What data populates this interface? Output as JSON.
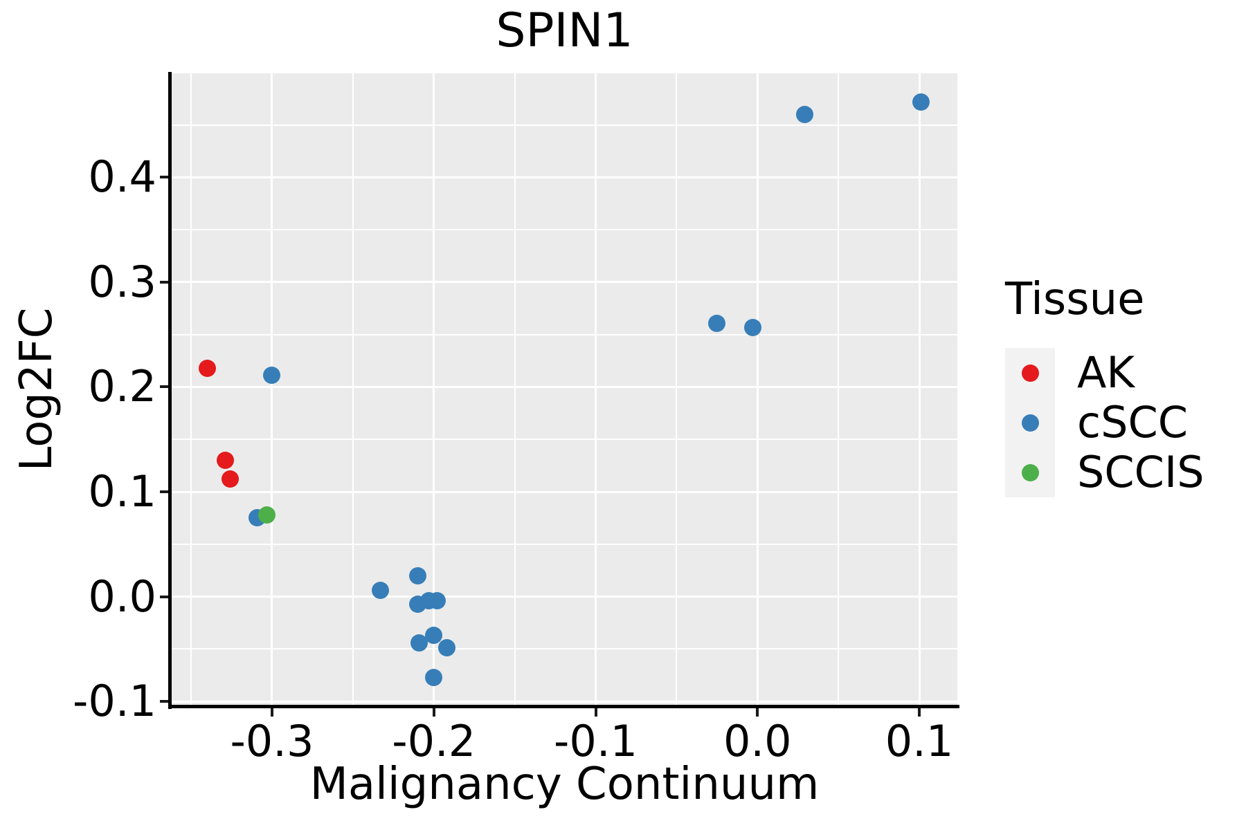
{
  "chart_data": {
    "type": "scatter",
    "title": "SPIN1",
    "xlabel": "Malignancy Continuum",
    "ylabel": "Log2FC",
    "xlim": [
      -0.362,
      0.1235
    ],
    "ylim": [
      -0.1046,
      0.4993
    ],
    "x_ticks": {
      "values": [
        -0.3,
        -0.2,
        -0.1,
        0.0,
        0.1
      ],
      "labels": [
        "-0.3",
        "-0.2",
        "-0.1",
        "0.0",
        "0.1"
      ]
    },
    "y_ticks": {
      "values": [
        0.4,
        0.3,
        0.2,
        0.1,
        0.0,
        -0.1
      ],
      "labels": [
        "0.4",
        "0.3",
        "0.2",
        "0.1",
        "0.0",
        "-0.1"
      ]
    },
    "x_minor_ticks": [
      -0.35,
      -0.25,
      -0.15,
      -0.05,
      0.05
    ],
    "y_minor_ticks": [
      0.45,
      0.35,
      0.25,
      0.15,
      0.05,
      -0.05
    ],
    "grid": true,
    "panel_background": "#EBEBEB",
    "grid_color": "#FFFFFF",
    "legend_position": "right",
    "series": [
      {
        "name": "AK",
        "color": "#E41A1C",
        "points": [
          [
            -0.34,
            0.218
          ],
          [
            -0.329,
            0.13
          ],
          [
            -0.326,
            0.112
          ]
        ]
      },
      {
        "name": "cSCC",
        "color": "#377EB8",
        "points": [
          [
            -0.3,
            0.211
          ],
          [
            -0.309,
            0.075
          ],
          [
            -0.233,
            0.006
          ],
          [
            -0.21,
            0.02
          ],
          [
            -0.21,
            -0.007
          ],
          [
            -0.203,
            -0.004
          ],
          [
            -0.198,
            -0.004
          ],
          [
            -0.2,
            -0.037
          ],
          [
            -0.209,
            -0.044
          ],
          [
            -0.192,
            -0.049
          ],
          [
            -0.2,
            -0.077
          ],
          [
            -0.025,
            0.261
          ],
          [
            -0.003,
            0.257
          ],
          [
            0.029,
            0.46
          ],
          [
            0.101,
            0.472
          ]
        ]
      },
      {
        "name": "SCCIS",
        "color": "#4DAF4A",
        "points": [
          [
            -0.303,
            0.078
          ]
        ]
      }
    ]
  },
  "legend": {
    "title": "Tissue",
    "key_background": "#F2F2F2",
    "items": [
      {
        "label": "AK",
        "color": "#E41A1C"
      },
      {
        "label": "cSCC",
        "color": "#377EB8"
      },
      {
        "label": "SCCIS",
        "color": "#4DAF4A"
      }
    ]
  }
}
